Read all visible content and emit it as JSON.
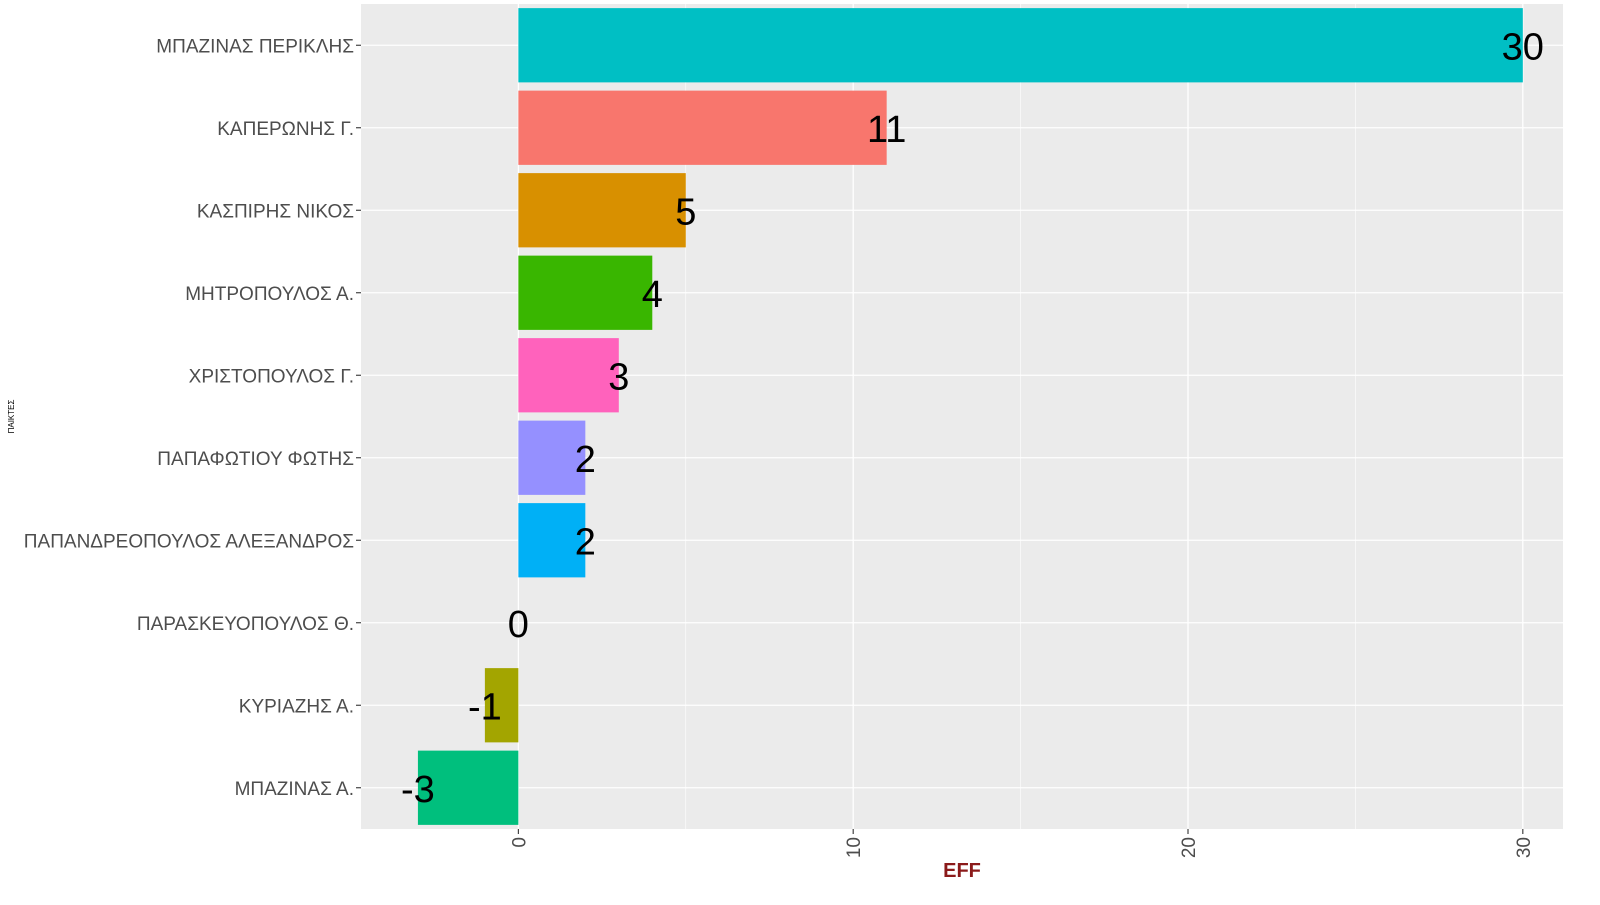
{
  "chart_data": {
    "type": "bar",
    "orientation": "horizontal",
    "title": "",
    "xlabel": "EFF",
    "ylabel": "ΠΑΙΚΤΕΣ",
    "xlim": [
      -4.7,
      31.2
    ],
    "x_ticks": [
      0,
      10,
      20,
      30
    ],
    "grid": true,
    "legend": "none",
    "panel_background": "#EBEBEB",
    "xlabel_color": "#8B1A1A",
    "categories": [
      "ΜΠΑΖΙΝΑΣ ΠΕΡΙΚΛΗΣ",
      "ΚΑΠΕΡΩΝΗΣ Γ.",
      "ΚΑΣΠΙΡΗΣ ΝΙΚΟΣ",
      "ΜΗΤΡΟΠΟΥΛΟΣ Α.",
      "ΧΡΙΣΤΟΠΟΥΛΟΣ Γ.",
      "ΠΑΠΑΦΩΤΙΟΥ ΦΩΤΗΣ",
      "ΠΑΠΑΝΔΡΕΟΠΟΥΛΟΣ ΑΛΕΞΑΝΔΡΟΣ",
      "ΠΑΡΑΣΚΕΥΟΠΟΥΛΟΣ Θ.",
      "ΚΥΡΙΑΖΗΣ Α.",
      "ΜΠΑΖΙΝΑΣ Α."
    ],
    "values": [
      30,
      11,
      5,
      4,
      3,
      2,
      2,
      0,
      -1,
      -3
    ],
    "colors": [
      "#00BFC4",
      "#F8766D",
      "#D89000",
      "#39B600",
      "#FF62BC",
      "#9590FF",
      "#00B0F6",
      "#A3A500",
      "#A3A500",
      "#00BF7D"
    ],
    "data_labels": [
      "30",
      "11",
      "5",
      "4",
      "3",
      "2",
      "2",
      "0",
      "-1",
      "-3"
    ]
  }
}
